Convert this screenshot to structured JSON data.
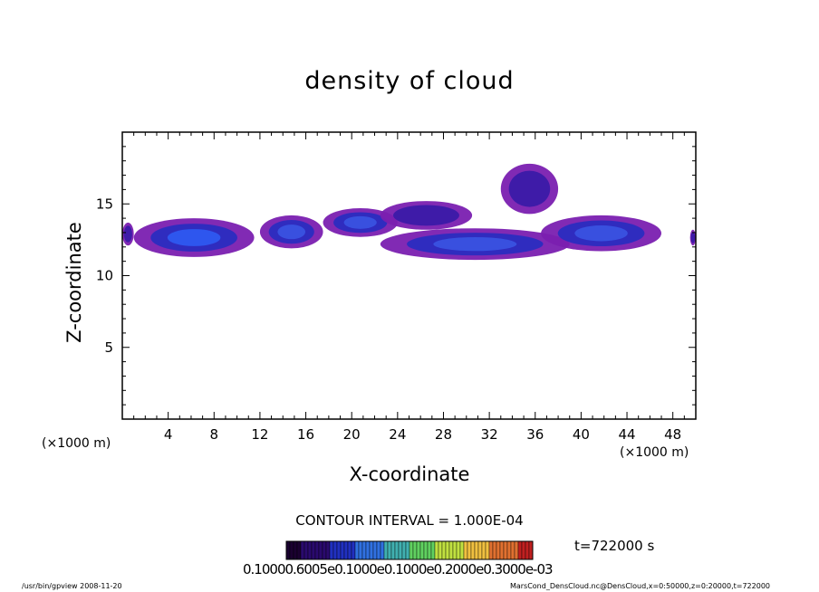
{
  "title": "density of cloud",
  "xlabel": "X-coordinate",
  "ylabel": "Z-coordinate",
  "x_unit": "(×1000 m)",
  "x_unit_right": "(×1000 m)",
  "contour_interval": "CONTOUR INTERVAL = 1.000E-04",
  "time_label": "t=722000 s",
  "colorbar_labels": "0.10000.6005e0.1000e0.1000e0.2000e0.3000e-03",
  "footer_left": "/usr/bin/gpview   2008-11-20",
  "footer_right": "MarsCond_DensCloud.nc@DensCloud,x=0:50000,z=0:20000,t=722000",
  "chart_data": {
    "type": "heatmap",
    "title": "density of cloud",
    "xlabel": "X-coordinate",
    "ylabel": "Z-coordinate",
    "x_unit": "×1000 m",
    "xlim": [
      0,
      50
    ],
    "ylim": [
      0,
      20
    ],
    "x_ticks": [
      4,
      8,
      12,
      16,
      20,
      24,
      28,
      32,
      36,
      40,
      44,
      48
    ],
    "y_ticks": [
      5,
      10,
      15
    ],
    "contour_interval": 0.0001,
    "time_s": 722000,
    "colormap": [
      "#1a0030",
      "#2a0a6e",
      "#2030c0",
      "#3070e0",
      "#40b0b0",
      "#60d060",
      "#c0e040",
      "#f0c040",
      "#e07030",
      "#c02020"
    ],
    "cloud_regions": [
      {
        "x": [
          0,
          1
        ],
        "z": [
          12.1,
          13.7
        ],
        "level": "low"
      },
      {
        "x": [
          1,
          11.5
        ],
        "z": [
          11.3,
          14
        ],
        "level": "high"
      },
      {
        "x": [
          12,
          17.5
        ],
        "z": [
          11.9,
          14.2
        ],
        "level": "mid"
      },
      {
        "x": [
          17.5,
          24
        ],
        "z": [
          12.7,
          14.7
        ],
        "level": "mid"
      },
      {
        "x": [
          22.5,
          30.5
        ],
        "z": [
          13.2,
          15.2
        ],
        "level": "low"
      },
      {
        "x": [
          22.5,
          39
        ],
        "z": [
          11.1,
          13.3
        ],
        "level": "mid"
      },
      {
        "x": [
          33,
          38
        ],
        "z": [
          14.3,
          17.8
        ],
        "level": "low"
      },
      {
        "x": [
          36.5,
          47
        ],
        "z": [
          11.7,
          14.2
        ],
        "level": "mid"
      },
      {
        "x": [
          49.5,
          50
        ],
        "z": [
          12.1,
          13.2
        ],
        "level": "low"
      }
    ]
  }
}
